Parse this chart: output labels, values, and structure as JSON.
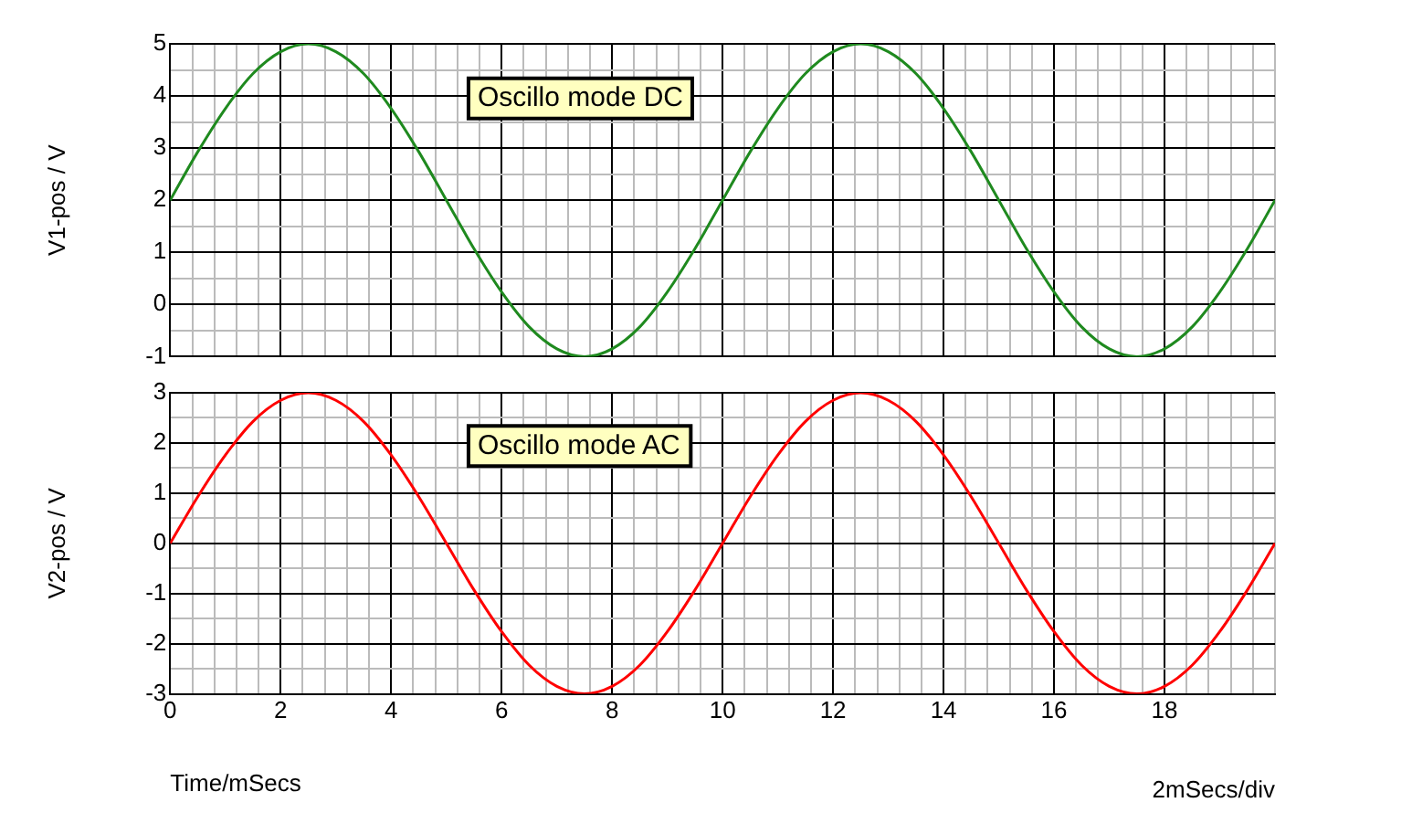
{
  "chart_data": [
    {
      "type": "line",
      "ylabel": "V1-pos / V",
      "annotations": [
        "Oscillo mode DC"
      ],
      "x": [
        0,
        0.5,
        1,
        1.5,
        2,
        2.5,
        3,
        3.5,
        4,
        4.5,
        5,
        5.5,
        6,
        6.5,
        7,
        7.5,
        8,
        8.5,
        9,
        9.5,
        10,
        10.5,
        11,
        11.5,
        12,
        12.5,
        13,
        13.5,
        14,
        14.5,
        15,
        15.5,
        16,
        16.5,
        17,
        17.5,
        18,
        18.5,
        19,
        19.5,
        20
      ],
      "series": [
        {
          "color": "#1f8a1f",
          "values": [
            2,
            2.93,
            3.76,
            4.43,
            4.85,
            5,
            4.85,
            4.43,
            3.76,
            2.93,
            2,
            1.07,
            0.24,
            -0.43,
            -0.85,
            -1,
            -0.85,
            -0.43,
            0.24,
            1.07,
            2,
            2.93,
            3.76,
            4.43,
            4.85,
            5,
            4.85,
            4.43,
            3.76,
            2.93,
            2,
            1.07,
            0.24,
            -0.43,
            -0.85,
            -1,
            -0.85,
            -0.43,
            0.24,
            1.07,
            2
          ]
        }
      ],
      "xlim": [
        0,
        20
      ],
      "xticks": [
        0,
        {
          "value": 0.4,
          "label": null
        },
        {
          "value": 0.8,
          "label": null
        },
        {
          "value": 1.2,
          "label": null
        },
        {
          "value": 1.6,
          "label": null
        },
        2,
        {
          "value": 2.4,
          "label": null
        },
        {
          "value": 2.8,
          "label": null
        },
        {
          "value": 3.2,
          "label": null
        },
        {
          "value": 3.6,
          "label": null
        },
        4,
        {
          "value": 4.4,
          "label": null
        },
        {
          "value": 4.8,
          "label": null
        },
        {
          "value": 5.2,
          "label": null
        },
        {
          "value": 5.6,
          "label": null
        },
        6,
        {
          "value": 6.4,
          "label": null
        },
        {
          "value": 6.8,
          "label": null
        },
        {
          "value": 7.2,
          "label": null
        },
        {
          "value": 7.6,
          "label": null
        },
        8,
        {
          "value": 8.4,
          "label": null
        },
        {
          "value": 8.8,
          "label": null
        },
        {
          "value": 9.2,
          "label": null
        },
        {
          "value": 9.6,
          "label": null
        },
        10,
        {
          "value": 10.4,
          "label": null
        },
        {
          "value": 10.8,
          "label": null
        },
        {
          "value": 11.2,
          "label": null
        },
        {
          "value": 11.6,
          "label": null
        },
        12,
        {
          "value": 12.4,
          "label": null
        },
        {
          "value": 12.8,
          "label": null
        },
        {
          "value": 13.2,
          "label": null
        },
        {
          "value": 13.6,
          "label": null
        },
        14,
        {
          "value": 14.4,
          "label": null
        },
        {
          "value": 14.8,
          "label": null
        },
        {
          "value": 15.2,
          "label": null
        },
        {
          "value": 15.6,
          "label": null
        },
        16,
        {
          "value": 16.4,
          "label": null
        },
        {
          "value": 16.8,
          "label": null
        },
        {
          "value": 17.2,
          "label": null
        },
        {
          "value": 17.6,
          "label": null
        },
        18,
        {
          "value": 18.4,
          "label": null
        },
        {
          "value": 18.8,
          "label": null
        },
        {
          "value": 19.2,
          "label": null
        },
        {
          "value": 19.6,
          "label": null
        },
        {
          "value": 20,
          "label": null
        }
      ],
      "ylim": [
        -1,
        5
      ],
      "yticks": [
        -1,
        {
          "value": -0.5,
          "label": null
        },
        0,
        {
          "value": 0.5,
          "label": null
        },
        1,
        {
          "value": 1.5,
          "label": null
        },
        2,
        {
          "value": 2.5,
          "label": null
        },
        3,
        {
          "value": 3.5,
          "label": null
        },
        4,
        {
          "value": 4.5,
          "label": null
        },
        5
      ],
      "grid": true,
      "tick_labels": "y"
    },
    {
      "type": "line",
      "xlabel": "Time/mSecs",
      "ylabel": "V2-pos / V",
      "annotations": [
        "Oscillo mode AC",
        "2mSecs/div"
      ],
      "x": [
        0,
        0.5,
        1,
        1.5,
        2,
        2.5,
        3,
        3.5,
        4,
        4.5,
        5,
        5.5,
        6,
        6.5,
        7,
        7.5,
        8,
        8.5,
        9,
        9.5,
        10,
        10.5,
        11,
        11.5,
        12,
        12.5,
        13,
        13.5,
        14,
        14.5,
        15,
        15.5,
        16,
        16.5,
        17,
        17.5,
        18,
        18.5,
        19,
        19.5,
        20
      ],
      "series": [
        {
          "color": "#ff0000",
          "values": [
            0,
            0.93,
            1.76,
            2.43,
            2.85,
            3,
            2.85,
            2.43,
            1.76,
            0.93,
            0,
            -0.93,
            -1.76,
            -2.43,
            -2.85,
            -3,
            -2.85,
            -2.43,
            -1.76,
            -0.93,
            0,
            0.93,
            1.76,
            2.43,
            2.85,
            3,
            2.85,
            2.43,
            1.76,
            0.93,
            0,
            -0.93,
            -1.76,
            -2.43,
            -2.85,
            -3,
            -2.85,
            -2.43,
            -1.76,
            -0.93,
            0
          ]
        }
      ],
      "xlim": [
        0,
        20
      ],
      "xticks": [
        0,
        {
          "value": 0.4,
          "label": null
        },
        {
          "value": 0.8,
          "label": null
        },
        {
          "value": 1.2,
          "label": null
        },
        {
          "value": 1.6,
          "label": null
        },
        2,
        {
          "value": 2.4,
          "label": null
        },
        {
          "value": 2.8,
          "label": null
        },
        {
          "value": 3.2,
          "label": null
        },
        {
          "value": 3.6,
          "label": null
        },
        4,
        {
          "value": 4.4,
          "label": null
        },
        {
          "value": 4.8,
          "label": null
        },
        {
          "value": 5.2,
          "label": null
        },
        {
          "value": 5.6,
          "label": null
        },
        6,
        {
          "value": 6.4,
          "label": null
        },
        {
          "value": 6.8,
          "label": null
        },
        {
          "value": 7.2,
          "label": null
        },
        {
          "value": 7.6,
          "label": null
        },
        8,
        {
          "value": 8.4,
          "label": null
        },
        {
          "value": 8.8,
          "label": null
        },
        {
          "value": 9.2,
          "label": null
        },
        {
          "value": 9.6,
          "label": null
        },
        10,
        {
          "value": 10.4,
          "label": null
        },
        {
          "value": 10.8,
          "label": null
        },
        {
          "value": 11.2,
          "label": null
        },
        {
          "value": 11.6,
          "label": null
        },
        12,
        {
          "value": 12.4,
          "label": null
        },
        {
          "value": 12.8,
          "label": null
        },
        {
          "value": 13.2,
          "label": null
        },
        {
          "value": 13.6,
          "label": null
        },
        14,
        {
          "value": 14.4,
          "label": null
        },
        {
          "value": 14.8,
          "label": null
        },
        {
          "value": 15.2,
          "label": null
        },
        {
          "value": 15.6,
          "label": null
        },
        16,
        {
          "value": 16.4,
          "label": null
        },
        {
          "value": 16.8,
          "label": null
        },
        {
          "value": 17.2,
          "label": null
        },
        {
          "value": 17.6,
          "label": null
        },
        18,
        {
          "value": 18.4,
          "label": null
        },
        {
          "value": 18.8,
          "label": null
        },
        {
          "value": 19.2,
          "label": null
        },
        {
          "value": 19.6,
          "label": null
        },
        {
          "value": 20,
          "label": null
        }
      ],
      "ylim": [
        -3,
        3
      ],
      "yticks": [
        -3,
        {
          "value": -2.5,
          "label": null
        },
        -2,
        {
          "value": -1.5,
          "label": null
        },
        -1,
        {
          "value": -0.5,
          "label": null
        },
        0,
        {
          "value": 0.5,
          "label": null
        },
        1,
        {
          "value": 1.5,
          "label": null
        },
        2,
        {
          "value": 2.5,
          "label": null
        },
        3
      ],
      "grid": true
    }
  ]
}
